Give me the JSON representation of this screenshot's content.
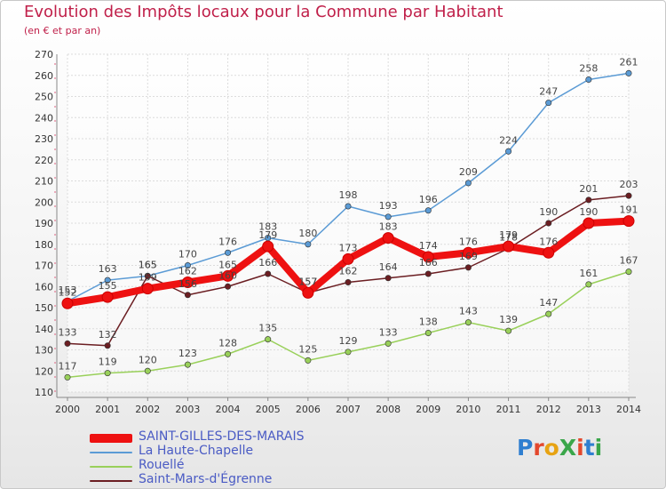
{
  "title": "Evolution des Impôts locaux pour la Commune par Habitant",
  "subtitle": "(en € et par an)",
  "logo_text": "ProXiti",
  "chart_data": {
    "type": "line",
    "title": "Evolution des Impôts locaux pour la Commune par Habitant",
    "subtitle": "(en € et par an)",
    "xlabel": "",
    "ylabel": "",
    "x": [
      "2000",
      "2001",
      "2002",
      "2003",
      "2004",
      "2005",
      "2006",
      "2007",
      "2008",
      "2009",
      "2010",
      "2011",
      "2012",
      "2013",
      "2014"
    ],
    "ylim": [
      110,
      270
    ],
    "yticks": [
      110,
      120,
      130,
      140,
      150,
      160,
      170,
      180,
      190,
      200,
      210,
      220,
      230,
      240,
      250,
      260,
      270
    ],
    "grid": true,
    "legend_position": "bottom-left",
    "series": [
      {
        "name": "SAINT-GILLES-DES-MARAIS",
        "color": "#ee1111",
        "emphasis": true,
        "values": [
          152,
          155,
          159,
          162,
          165,
          179,
          157,
          173,
          183,
          174,
          176,
          179,
          176,
          190,
          191
        ]
      },
      {
        "name": "La Haute-Chapelle",
        "color": "#5b9bd5",
        "values": [
          153,
          163,
          165,
          170,
          176,
          183,
          180,
          198,
          193,
          196,
          209,
          224,
          247,
          258,
          261
        ]
      },
      {
        "name": "Rouellé",
        "color": "#99d05a",
        "values": [
          117,
          119,
          120,
          123,
          128,
          135,
          125,
          129,
          133,
          138,
          143,
          139,
          147,
          161,
          167
        ]
      },
      {
        "name": "Saint-Mars-d'Égrenne",
        "color": "#6b1e22",
        "values": [
          133,
          132,
          165,
          156,
          160,
          166,
          157,
          162,
          164,
          166,
          169,
          178,
          190,
          201,
          203
        ]
      }
    ]
  }
}
